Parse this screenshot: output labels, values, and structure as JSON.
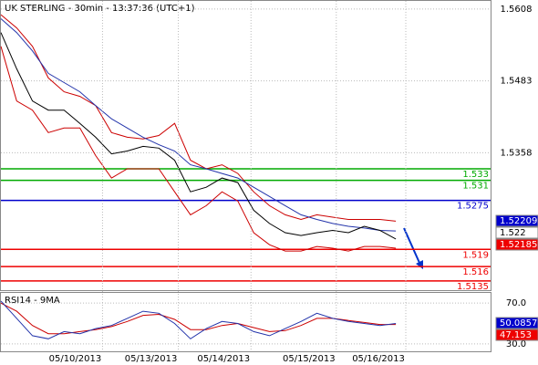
{
  "chart_data": [
    {
      "type": "line",
      "title": "UK STERLING - 30min - 13:37:36 (UTC+1)",
      "x": [
        0,
        10,
        20,
        30,
        40,
        50,
        60,
        70,
        80,
        90,
        100,
        110,
        120,
        130,
        140,
        150,
        160,
        170,
        180,
        190,
        200,
        210,
        220,
        230,
        240,
        250
      ],
      "xlim": [
        0,
        310
      ],
      "ylim": [
        1.5119,
        1.5622
      ],
      "yticks": [
        1.5608,
        1.5483,
        1.5358
      ],
      "grid": true,
      "series": [
        {
          "color": "#cc0000",
          "values": [
            1.5598,
            1.5575,
            1.5543,
            1.5488,
            1.5464,
            1.5456,
            1.544,
            1.5393,
            1.5385,
            1.5382,
            1.5388,
            1.5409,
            1.5345,
            1.533,
            1.5337,
            1.5322,
            1.529,
            1.5266,
            1.525,
            1.5242,
            1.525,
            1.5246,
            1.5242,
            1.5242,
            1.5242,
            1.5239
          ]
        },
        {
          "color": "#cc0000",
          "values": [
            1.5543,
            1.5448,
            1.5432,
            1.5393,
            1.5401,
            1.5401,
            1.5353,
            1.5314,
            1.533,
            1.533,
            1.533,
            1.529,
            1.525,
            1.5266,
            1.529,
            1.5274,
            1.5219,
            1.5198,
            1.5187,
            1.5187,
            1.5195,
            1.5192,
            1.5187,
            1.5195,
            1.5195,
            1.5192
          ]
        },
        {
          "color": "#2233aa",
          "values": [
            1.5591,
            1.5567,
            1.5535,
            1.5496,
            1.548,
            1.5464,
            1.544,
            1.5417,
            1.5401,
            1.5385,
            1.5372,
            1.5361,
            1.5337,
            1.533,
            1.5322,
            1.5314,
            1.5298,
            1.5282,
            1.5266,
            1.525,
            1.5242,
            1.5235,
            1.523,
            1.5227,
            1.5223,
            1.5222
          ]
        },
        {
          "color": "#000000",
          "values": [
            1.5567,
            1.5504,
            1.5448,
            1.5432,
            1.5432,
            1.5409,
            1.5385,
            1.5356,
            1.5361,
            1.5369,
            1.5366,
            1.5345,
            1.529,
            1.5298,
            1.5314,
            1.5306,
            1.5258,
            1.5235,
            1.5219,
            1.5214,
            1.5219,
            1.5223,
            1.5219,
            1.523,
            1.5223,
            1.5208
          ]
        }
      ],
      "levels": [
        {
          "value": 1.533,
          "color": "#00aa00"
        },
        {
          "value": 1.531,
          "color": "#00aa00"
        },
        {
          "value": 1.5275,
          "color": "#0000cc"
        },
        {
          "value": 1.519,
          "color": "#ee0000"
        },
        {
          "value": 1.516,
          "color": "#ee0000"
        },
        {
          "value": 1.5135,
          "color": "#ee0000"
        }
      ],
      "markers": [
        {
          "value": 1.52209,
          "color": "#0000cc",
          "text_color": "#ffffff"
        },
        {
          "value": 1.522,
          "color": "#ffffff",
          "text_color": "#000000"
        },
        {
          "value": 1.52185,
          "color": "#ee0000",
          "text_color": "#ffffff"
        }
      ]
    },
    {
      "type": "line",
      "title": "RSI14 - 9MA",
      "x": [
        0,
        10,
        20,
        30,
        40,
        50,
        60,
        70,
        80,
        90,
        100,
        110,
        120,
        130,
        140,
        150,
        160,
        170,
        180,
        190,
        200,
        210,
        220,
        230,
        240,
        250
      ],
      "xlim": [
        0,
        310
      ],
      "ylim": [
        22.7,
        80
      ],
      "yticks": [
        {
          "value": 70,
          "label": "70.0"
        },
        {
          "value": 30,
          "label": "30.0"
        }
      ],
      "xticks": [
        {
          "value": 47,
          "label": "05/10/2013"
        },
        {
          "value": 95,
          "label": "05/13/2013"
        },
        {
          "value": 141,
          "label": "05/14/2013"
        },
        {
          "value": 195,
          "label": "05/15/2013"
        },
        {
          "value": 239,
          "label": "05/16/2013"
        }
      ],
      "grid": true,
      "series": [
        {
          "color": "#cc0000",
          "values": [
            70,
            62,
            48,
            40,
            40,
            42,
            44,
            47,
            52,
            58,
            59,
            54,
            44,
            44,
            48,
            50,
            46,
            42,
            43,
            48,
            55,
            55,
            53,
            51,
            49,
            49
          ]
        },
        {
          "color": "#2233aa",
          "values": [
            72,
            55,
            38,
            35,
            42,
            40,
            45,
            48,
            55,
            62,
            60,
            50,
            35,
            45,
            52,
            50,
            42,
            38,
            45,
            52,
            60,
            55,
            52,
            50,
            48,
            50
          ]
        }
      ],
      "markers": [
        {
          "value": 50.0857,
          "color": "#0000cc",
          "text_color": "#ffffff"
        },
        {
          "value": 47.153,
          "color": "#ee0000",
          "text_color": "#ffffff"
        }
      ]
    }
  ]
}
